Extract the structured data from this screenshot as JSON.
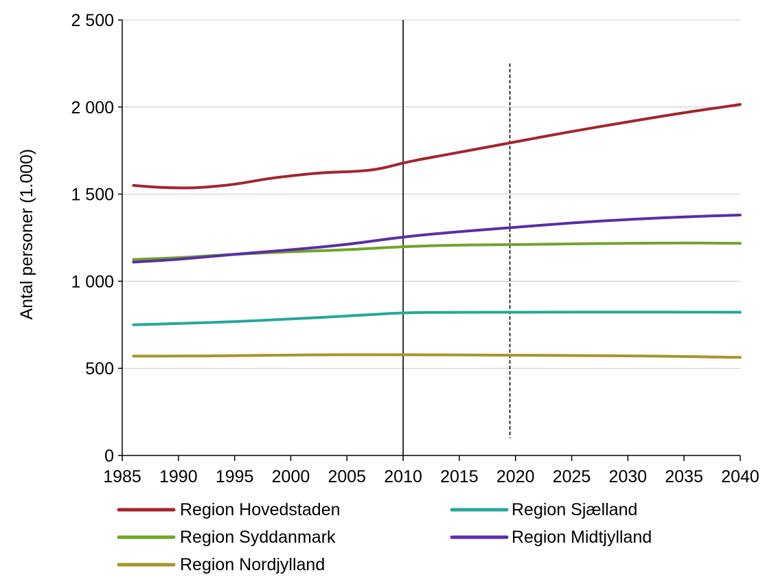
{
  "chart_data": {
    "type": "line",
    "title": "",
    "xlabel": "",
    "ylabel": "Antal personer  (1.000)",
    "xlim": [
      1985,
      2040
    ],
    "ylim": [
      0,
      2500
    ],
    "x_ticks": [
      "1985",
      "1990",
      "1995",
      "2000",
      "2005",
      "2010",
      "2015",
      "2020",
      "2025",
      "2030",
      "2035",
      "2040"
    ],
    "y_ticks": [
      "0",
      "500",
      "1 000",
      "1 500",
      "2 000",
      "2 500"
    ],
    "grid": "horizontal",
    "legend_position": "bottom",
    "vertical_lines": [
      {
        "x": 2010,
        "style": "solid"
      },
      {
        "x": 2019.5,
        "style": "dashed",
        "y_range": [
          100,
          2250
        ]
      }
    ],
    "series": [
      {
        "name": "Region Hovedstaden",
        "color": "#a3252e",
        "x": [
          1986,
          1988,
          1990,
          1992,
          1995,
          1998,
          2000,
          2003,
          2006,
          2008,
          2010,
          2012,
          2015,
          2020,
          2025,
          2030,
          2035,
          2040
        ],
        "values": [
          1550,
          1540,
          1535,
          1537,
          1555,
          1590,
          1605,
          1625,
          1630,
          1645,
          1680,
          1705,
          1740,
          1800,
          1860,
          1915,
          1968,
          2015
        ]
      },
      {
        "name": "Region Syddanmark",
        "color": "#6ea52a",
        "x": [
          1986,
          1990,
          1995,
          2000,
          2005,
          2010,
          2015,
          2020,
          2025,
          2030,
          2035,
          2040
        ],
        "values": [
          1125,
          1135,
          1155,
          1170,
          1180,
          1200,
          1208,
          1210,
          1215,
          1218,
          1220,
          1218
        ]
      },
      {
        "name": "Region Nordjylland",
        "color": "#a8952a",
        "x": [
          1986,
          1990,
          1995,
          2000,
          2005,
          2010,
          2015,
          2020,
          2025,
          2030,
          2035,
          2040
        ],
        "values": [
          570,
          570,
          573,
          577,
          578,
          578,
          577,
          575,
          574,
          572,
          568,
          563
        ]
      },
      {
        "name": "Region Sjælland",
        "color": "#28a79b",
        "x": [
          1986,
          1990,
          1995,
          2000,
          2005,
          2010,
          2015,
          2020,
          2025,
          2030,
          2035,
          2040
        ],
        "values": [
          750,
          757,
          768,
          783,
          800,
          820,
          822,
          822,
          823,
          823,
          823,
          822
        ]
      },
      {
        "name": "Region Midtjylland",
        "color": "#5b2ea6",
        "x": [
          1986,
          1990,
          1995,
          2000,
          2005,
          2010,
          2015,
          2020,
          2025,
          2030,
          2035,
          2040
        ],
        "values": [
          1110,
          1125,
          1155,
          1180,
          1210,
          1255,
          1285,
          1310,
          1335,
          1355,
          1370,
          1380
        ]
      }
    ]
  }
}
